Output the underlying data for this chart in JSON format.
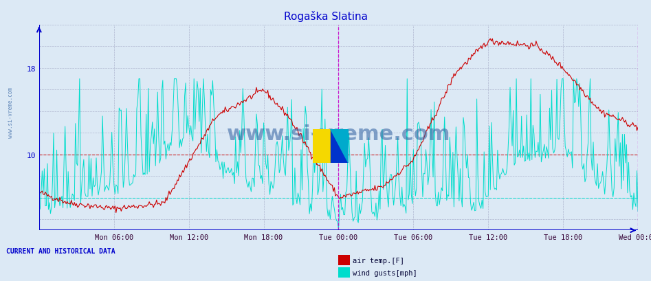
{
  "title": "Rogaška Slatina",
  "bg_color": "#dce9f5",
  "plot_bg_color": "#dce9f5",
  "axis_color": "#0000cc",
  "grid_color": "#b0b8d0",
  "red_line_color": "#cc0000",
  "cyan_line_color": "#00ddcc",
  "title_color": "#0000cc",
  "watermark_color": "#3060a0",
  "x_tick_labels": [
    "Mon 06:00",
    "Mon 12:00",
    "Mon 18:00",
    "Tue 00:00",
    "Tue 06:00",
    "Tue 12:00",
    "Tue 18:00",
    "Wed 00:00"
  ],
  "x_tick_positions": [
    72,
    144,
    216,
    288,
    360,
    432,
    504,
    576
  ],
  "y_ticks": [
    10,
    18
  ],
  "ylim": [
    3,
    22
  ],
  "xlim": [
    0,
    576
  ],
  "legend_labels": [
    "air temp.[F]",
    "wind gusts[mph]"
  ],
  "legend_colors": [
    "#cc0000",
    "#00ddcc"
  ],
  "footer_text": "CURRENT AND HISTORICAL DATA",
  "magenta_vlines": [
    288,
    576
  ],
  "red_hline": 10.0,
  "cyan_hline": 6.0
}
